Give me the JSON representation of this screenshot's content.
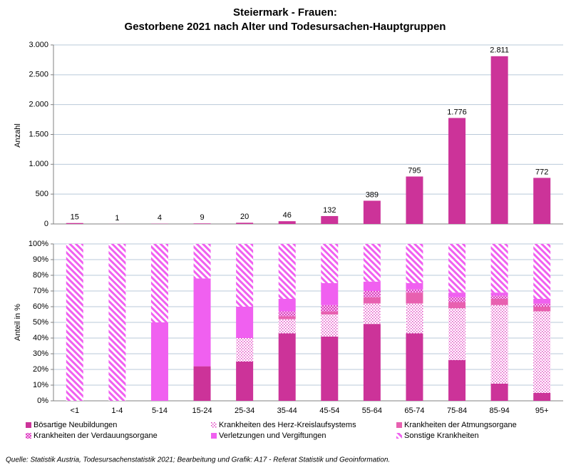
{
  "title": [
    "Steiermark - Frauen:",
    "Gestorbene 2021 nach Alter und Todesursachen-Hauptgruppen"
  ],
  "source": "Quelle: Statistik Austria, Todesursachenstatistik 2021; Bearbeitung und Grafik: A17 - Referat Statistik und Geoinformation.",
  "chart_data": [
    {
      "type": "bar",
      "ylabel": "Anzahl",
      "color": "#cc3399",
      "grid": true,
      "values": [
        15,
        1,
        4,
        9,
        20,
        46,
        132,
        389,
        795,
        1776,
        2811,
        772
      ],
      "value_labels": [
        "15",
        "1",
        "4",
        "9",
        "20",
        "46",
        "132",
        "389",
        "795",
        "1.776",
        "2.811",
        "772"
      ],
      "ylim": [
        0,
        3000
      ],
      "yticks": [
        0,
        500,
        {
          "value": 1000,
          "label": "1.000"
        },
        {
          "value": 1500,
          "label": "1.500"
        },
        {
          "value": 2000,
          "label": "2.000"
        },
        {
          "value": 2500,
          "label": "2.500"
        },
        {
          "value": 3000,
          "label": "3.000"
        }
      ]
    },
    {
      "type": "stacked_bar",
      "ylabel": "Anteil in %",
      "grid": true,
      "categories": [
        "<1",
        "1-4",
        "5-14",
        "15-24",
        "25-34",
        "35-44",
        "45-54",
        "55-64",
        "65-74",
        "75-84",
        "85-94",
        "95+"
      ],
      "ylim": [
        0,
        100
      ],
      "yticks": [
        {
          "value": 0,
          "label": "0%"
        },
        {
          "value": 10,
          "label": "10%"
        },
        {
          "value": 20,
          "label": "20%"
        },
        {
          "value": 30,
          "label": "30%"
        },
        {
          "value": 40,
          "label": "40%"
        },
        {
          "value": 50,
          "label": "50%"
        },
        {
          "value": 60,
          "label": "60%"
        },
        {
          "value": 70,
          "label": "70%"
        },
        {
          "value": 80,
          "label": "80%"
        },
        {
          "value": 90,
          "label": "90%"
        },
        {
          "value": 100,
          "label": "100%"
        }
      ],
      "series": [
        {
          "name": "Bösartige Neubildungen",
          "color": "#cc3399",
          "pattern": "solid",
          "values": [
            0,
            0,
            0,
            22,
            25,
            43,
            41,
            49,
            43,
            26,
            11,
            5
          ]
        },
        {
          "name": "Krankheiten des Herz-Kreislaufsystems",
          "color": "#e040c0",
          "pattern": "dots",
          "values": [
            0,
            0,
            0,
            0,
            15,
            9,
            14,
            13,
            19,
            33,
            50,
            52
          ]
        },
        {
          "name": "Krankheiten der Atmungsorgane",
          "color": "#e860b0",
          "pattern": "solid",
          "values": [
            0,
            0,
            0,
            0,
            0,
            2,
            2,
            4,
            7,
            4,
            4,
            3
          ]
        },
        {
          "name": "Krankheiten der Verdauungsorgane",
          "color": "#e040c0",
          "pattern": "checker",
          "values": [
            0,
            0,
            0,
            0,
            0,
            3,
            4,
            4,
            2,
            3,
            2,
            2
          ]
        },
        {
          "name": "Verletzungen und Vergiftungen",
          "color": "#f060f0",
          "pattern": "solid",
          "values": [
            0,
            0,
            50,
            56,
            20,
            8,
            14,
            6,
            4,
            3,
            2,
            3
          ]
        },
        {
          "name": "Sonstige Krankheiten",
          "color": "#f060f0",
          "pattern": "stripes",
          "values": [
            100,
            100,
            50,
            22,
            40,
            35,
            25,
            24,
            25,
            31,
            31,
            35
          ]
        }
      ]
    }
  ]
}
